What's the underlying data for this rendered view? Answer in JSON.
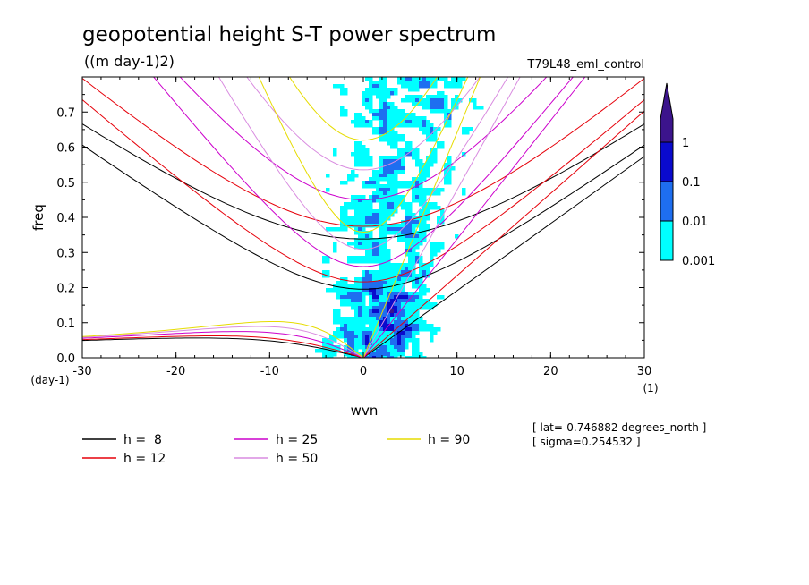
{
  "chart_data": {
    "type": "heatmap",
    "title": "geopotential height S-T power spectrum",
    "units_label": "((m day-1)2)",
    "run_label": "T79L48_eml_control",
    "xlabel": "wvn",
    "ylabel": "freq",
    "x_units": "(1)",
    "y_units": "(day-1)",
    "xlim": [
      -30,
      30
    ],
    "ylim": [
      0,
      0.8
    ],
    "x_ticks": [
      -30,
      -20,
      -10,
      0,
      10,
      20,
      30
    ],
    "x_tick_labels": [
      "-30",
      "-20",
      "-10",
      "0",
      "10",
      "20",
      "30"
    ],
    "y_ticks": [
      0,
      0.1,
      0.2,
      0.3,
      0.4,
      0.5,
      0.6,
      0.7
    ],
    "y_tick_labels": [
      "0.0",
      "0.1",
      "0.2",
      "0.3",
      "0.4",
      "0.5",
      "0.6",
      "0.7"
    ],
    "contour_levels": [
      0.001,
      0.01,
      0.1,
      1
    ],
    "colorbar_labels": [
      "0.001",
      "0.01",
      "0.1",
      "1"
    ],
    "colorbar_colors": [
      "#00ffff",
      "#1e6ef0",
      "#0a0acd",
      "#3c148c"
    ],
    "dispersion_curves": [
      {
        "name": "h =  8",
        "h": 8,
        "color": "#000000"
      },
      {
        "name": "h = 12",
        "h": 12,
        "color": "#e6000a"
      },
      {
        "name": "h = 25",
        "h": 25,
        "color": "#cc00cc"
      },
      {
        "name": "h = 50",
        "h": 50,
        "color": "#d98ce0"
      },
      {
        "name": "h = 90",
        "h": 90,
        "color": "#e6dc00"
      }
    ],
    "annotations": [
      "[ lat=-0.746882 degrees_north ]",
      "[ sigma=0.254532 ]"
    ]
  }
}
